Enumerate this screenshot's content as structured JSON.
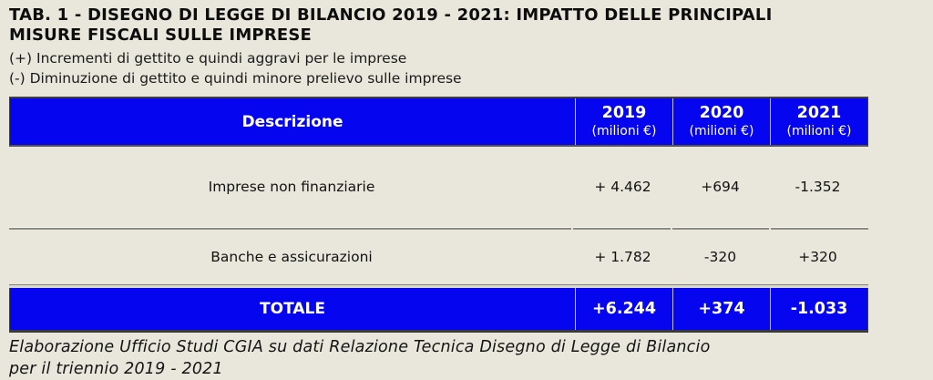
{
  "colors": {
    "background": "#e9e7db",
    "accent_blue": "#0505f0",
    "header_text": "#ffffff",
    "body_text": "#121212",
    "separator_gray": "#8c8c85",
    "border_dark": "#3f3f3f"
  },
  "header": {
    "title_lines": [
      "TAB. 1 - DISEGNO DI LEGGE DI BILANCIO 2019 - 2021: IMPATTO DELLE PRINCIPALI",
      "MISURE FISCALI SULLE IMPRESE"
    ],
    "legend_plus": "(+) Incrementi di gettito e quindi aggravi per le imprese",
    "legend_minus": "(-) Diminuzione di gettito e quindi minore prelievo sulle imprese"
  },
  "table": {
    "header": {
      "description": "Descrizione",
      "columns": [
        {
          "year": "2019",
          "unit": "(milioni €)"
        },
        {
          "year": "2020",
          "unit": "(milioni €)"
        },
        {
          "year": "2021",
          "unit": "(milioni €)"
        }
      ]
    },
    "rows": [
      {
        "label": "Imprese non finanziarie",
        "values": [
          "+ 4.462",
          "+694",
          "-1.352"
        ]
      },
      {
        "label": "Banche e assicurazioni",
        "values": [
          "+ 1.782",
          "-320",
          "+320"
        ]
      }
    ],
    "total": {
      "label": "TOTALE",
      "values": [
        "+6.244",
        "+374",
        "-1.033"
      ]
    }
  },
  "footer": {
    "source_lines": [
      "Elaborazione Ufficio Studi CGIA su dati Relazione Tecnica Disegno di Legge di Bilancio",
      "per il triennio 2019 - 2021"
    ]
  },
  "chart_data": {
    "type": "table",
    "title": "TAB. 1 - DISEGNO DI LEGGE DI BILANCIO 2019 - 2021: IMPATTO DELLE PRINCIPALI MISURE FISCALI SULLE IMPRESE",
    "columns": [
      "Descrizione",
      "2019 (milioni €)",
      "2020 (milioni €)",
      "2021 (milioni €)"
    ],
    "rows": [
      [
        "Imprese non finanziarie",
        "+ 4.462",
        "+694",
        "-1.352"
      ],
      [
        "Banche e assicurazioni",
        "+ 1.782",
        "-320",
        "+320"
      ],
      [
        "TOTALE",
        "+6.244",
        "+374",
        "-1.033"
      ]
    ],
    "source": "Elaborazione Ufficio Studi CGIA su dati Relazione Tecnica Disegno di Legge di Bilancio per il triennio 2019 - 2021"
  }
}
